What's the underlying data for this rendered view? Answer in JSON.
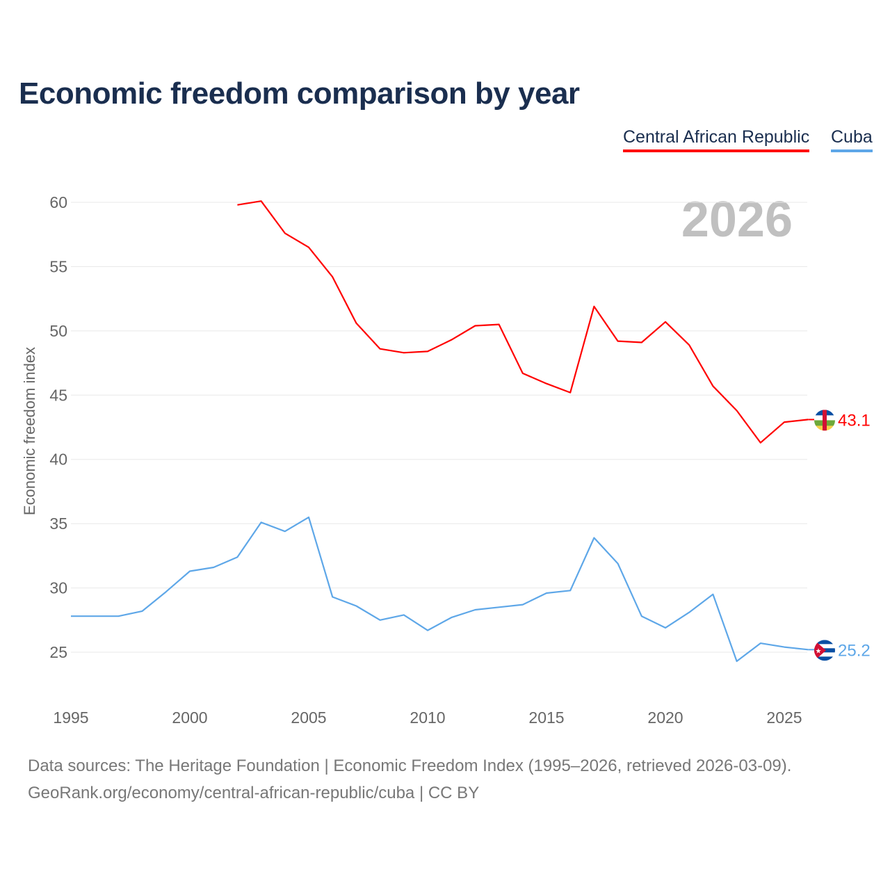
{
  "chart_data": {
    "type": "line",
    "title": "Economic freedom comparison by year",
    "ylabel": "Economic freedom index",
    "xlabel": "",
    "year_watermark": "2026",
    "ylim": [
      21,
      62
    ],
    "xlim": [
      1995,
      2026
    ],
    "yticks": [
      25,
      30,
      35,
      40,
      45,
      50,
      55,
      60
    ],
    "xticks": [
      1995,
      2000,
      2005,
      2010,
      2015,
      2020,
      2025
    ],
    "grid": true,
    "legend_position": "top-right",
    "series": [
      {
        "name": "Central African Republic",
        "color": "#ff0000",
        "end_label": "43.1",
        "x": [
          2002,
          2003,
          2004,
          2005,
          2006,
          2007,
          2008,
          2009,
          2010,
          2011,
          2012,
          2013,
          2014,
          2015,
          2016,
          2017,
          2018,
          2019,
          2020,
          2021,
          2022,
          2023,
          2024,
          2025,
          2026
        ],
        "values": [
          59.8,
          60.1,
          57.6,
          56.5,
          54.2,
          50.6,
          48.6,
          48.3,
          48.4,
          49.3,
          50.4,
          50.5,
          46.7,
          45.9,
          45.2,
          51.9,
          49.2,
          49.1,
          50.7,
          48.9,
          45.7,
          43.8,
          41.3,
          42.9,
          43.1
        ]
      },
      {
        "name": "Cuba",
        "color": "#5ea7e8",
        "end_label": "25.2",
        "x": [
          1995,
          1996,
          1997,
          1998,
          1999,
          2000,
          2001,
          2002,
          2003,
          2004,
          2005,
          2006,
          2007,
          2008,
          2009,
          2010,
          2011,
          2012,
          2013,
          2014,
          2015,
          2016,
          2017,
          2018,
          2019,
          2020,
          2021,
          2022,
          2023,
          2024,
          2025,
          2026
        ],
        "values": [
          27.8,
          27.8,
          27.8,
          28.2,
          29.7,
          31.3,
          31.6,
          32.4,
          35.1,
          34.4,
          35.5,
          29.3,
          28.6,
          27.5,
          27.9,
          26.7,
          27.7,
          28.3,
          28.5,
          28.7,
          29.6,
          29.8,
          33.9,
          31.9,
          27.8,
          26.9,
          28.1,
          29.5,
          24.3,
          25.7,
          25.4,
          25.2
        ]
      }
    ]
  },
  "footer": {
    "line1": "Data sources: The Heritage Foundation | Economic Freedom Index (1995–2026, retrieved 2026-03-09).",
    "line2": "GeoRank.org/economy/central-african-republic/cuba | CC BY"
  }
}
